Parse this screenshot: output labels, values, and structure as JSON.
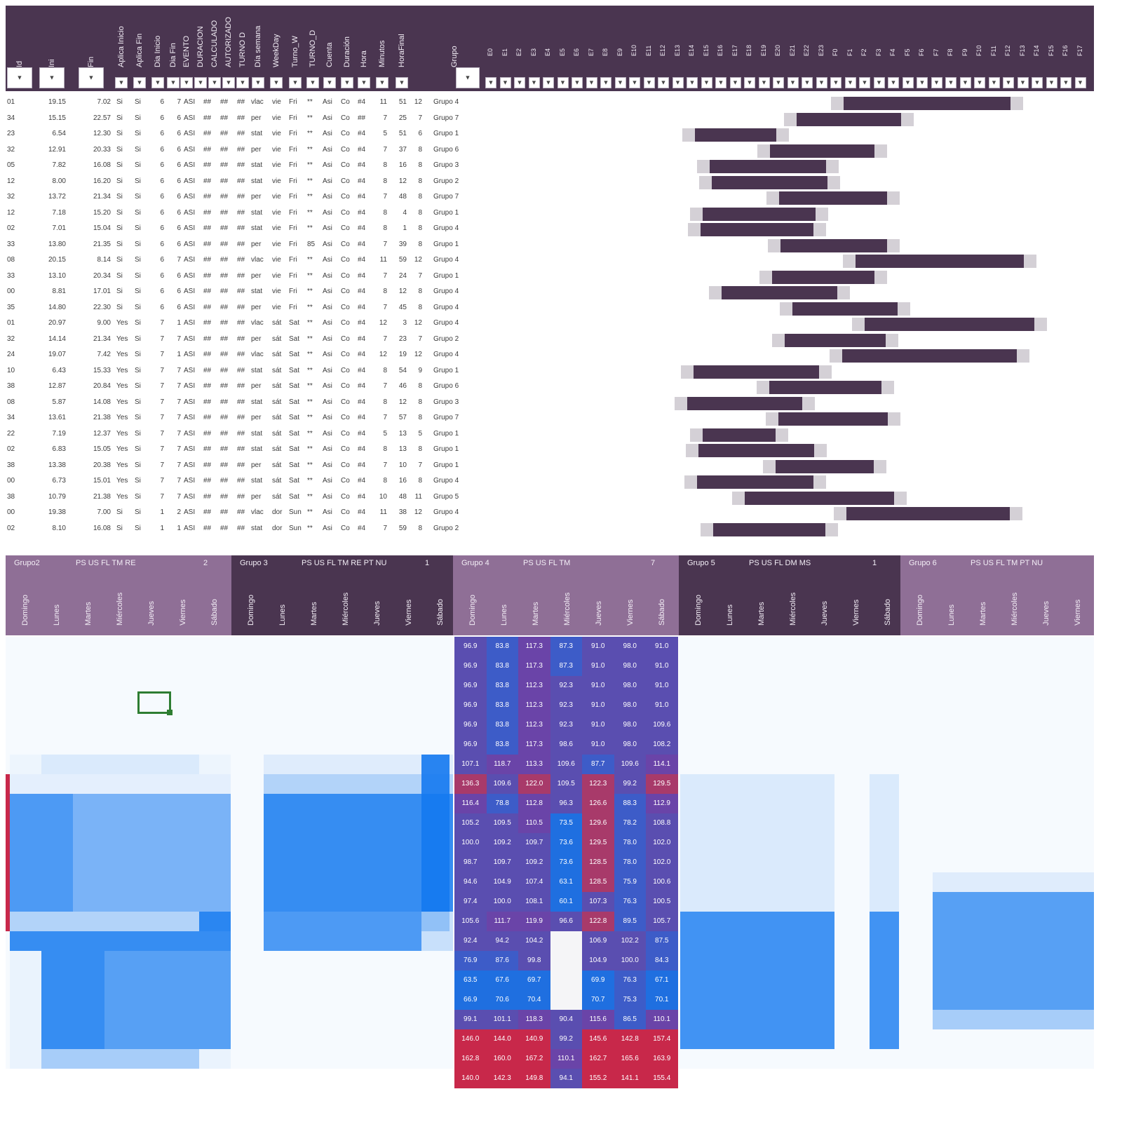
{
  "top_headers": {
    "left": [
      "Id",
      "Ini",
      "Fin",
      "Aplica Inicio",
      "Aplica Fin",
      "Dia Inicio",
      "Dia Fin",
      "EVENTO",
      "DURACION",
      "CALCULADO",
      "AUTORIZADO",
      "TURNO D",
      "Día semana",
      "WeekDay",
      "Turno_W",
      "TURNO_D",
      "Cuenta",
      "Duración",
      "Hora",
      "Minutos",
      "HoraFinal"
    ],
    "grupo": "Grupo",
    "hours": [
      "E0",
      "E1",
      "E2",
      "E3",
      "E4",
      "E5",
      "E6",
      "E7",
      "E8",
      "E9",
      "E10",
      "E11",
      "E12",
      "E13",
      "E14",
      "E15",
      "E16",
      "E17",
      "E18",
      "E19",
      "E20",
      "E21",
      "E22",
      "E23",
      "F0",
      "F1",
      "F2",
      "F3",
      "F4",
      "F5",
      "F6",
      "F7",
      "F8",
      "F9",
      "F10",
      "F11",
      "F12",
      "F13",
      "F14",
      "F15",
      "F16",
      "F17"
    ]
  },
  "filter_glyph": "▼",
  "rows": [
    {
      "id": "01",
      "ini": "19.15",
      "fin": "7.02",
      "a1": "Si",
      "a2": "Si",
      "d1": "6",
      "d2": "7",
      "ev": "ASI",
      "c1": "##",
      "c2": "##",
      "c3": "##",
      "td": "vlac",
      "ds": "vie",
      "wd": "Fri",
      "tw": "**",
      "tdd": "Asi",
      "cu": "Co",
      "du": "#4",
      "h": "11",
      "m": "51",
      "hf": "12",
      "g": "Grupo 4"
    },
    {
      "id": "34",
      "ini": "15.15",
      "fin": "22.57",
      "a1": "Si",
      "a2": "Si",
      "d1": "6",
      "d2": "6",
      "ev": "ASI",
      "c1": "##",
      "c2": "##",
      "c3": "##",
      "td": "per",
      "ds": "vie",
      "wd": "Fri",
      "tw": "**",
      "tdd": "Asi",
      "cu": "Co",
      "du": "##",
      "h": "7",
      "m": "25",
      "hf": "7",
      "g": "Grupo 7"
    },
    {
      "id": "23",
      "ini": "6.54",
      "fin": "12.30",
      "a1": "Si",
      "a2": "Si",
      "d1": "6",
      "d2": "6",
      "ev": "ASI",
      "c1": "##",
      "c2": "##",
      "c3": "##",
      "td": "stat",
      "ds": "vie",
      "wd": "Fri",
      "tw": "**",
      "tdd": "Asi",
      "cu": "Co",
      "du": "#4",
      "h": "5",
      "m": "51",
      "hf": "6",
      "g": "Grupo 1"
    },
    {
      "id": "32",
      "ini": "12.91",
      "fin": "20.33",
      "a1": "Si",
      "a2": "Si",
      "d1": "6",
      "d2": "6",
      "ev": "ASI",
      "c1": "##",
      "c2": "##",
      "c3": "##",
      "td": "per",
      "ds": "vie",
      "wd": "Fri",
      "tw": "**",
      "tdd": "Asi",
      "cu": "Co",
      "du": "#4",
      "h": "7",
      "m": "37",
      "hf": "8",
      "g": "Grupo 6"
    },
    {
      "id": "05",
      "ini": "7.82",
      "fin": "16.08",
      "a1": "Si",
      "a2": "Si",
      "d1": "6",
      "d2": "6",
      "ev": "ASI",
      "c1": "##",
      "c2": "##",
      "c3": "##",
      "td": "stat",
      "ds": "vie",
      "wd": "Fri",
      "tw": "**",
      "tdd": "Asi",
      "cu": "Co",
      "du": "#4",
      "h": "8",
      "m": "16",
      "hf": "8",
      "g": "Grupo 3"
    },
    {
      "id": "12",
      "ini": "8.00",
      "fin": "16.20",
      "a1": "Si",
      "a2": "Si",
      "d1": "6",
      "d2": "6",
      "ev": "ASI",
      "c1": "##",
      "c2": "##",
      "c3": "##",
      "td": "stat",
      "ds": "vie",
      "wd": "Fri",
      "tw": "**",
      "tdd": "Asi",
      "cu": "Co",
      "du": "#4",
      "h": "8",
      "m": "12",
      "hf": "8",
      "g": "Grupo 2"
    },
    {
      "id": "32",
      "ini": "13.72",
      "fin": "21.34",
      "a1": "Si",
      "a2": "Si",
      "d1": "6",
      "d2": "6",
      "ev": "ASI",
      "c1": "##",
      "c2": "##",
      "c3": "##",
      "td": "per",
      "ds": "vie",
      "wd": "Fri",
      "tw": "**",
      "tdd": "Asi",
      "cu": "Co",
      "du": "#4",
      "h": "7",
      "m": "48",
      "hf": "8",
      "g": "Grupo 7"
    },
    {
      "id": "12",
      "ini": "7.18",
      "fin": "15.20",
      "a1": "Si",
      "a2": "Si",
      "d1": "6",
      "d2": "6",
      "ev": "ASI",
      "c1": "##",
      "c2": "##",
      "c3": "##",
      "td": "stat",
      "ds": "vie",
      "wd": "Fri",
      "tw": "**",
      "tdd": "Asi",
      "cu": "Co",
      "du": "#4",
      "h": "8",
      "m": "4",
      "hf": "8",
      "g": "Grupo 1"
    },
    {
      "id": "02",
      "ini": "7.01",
      "fin": "15.04",
      "a1": "Si",
      "a2": "Si",
      "d1": "6",
      "d2": "6",
      "ev": "ASI",
      "c1": "##",
      "c2": "##",
      "c3": "##",
      "td": "stat",
      "ds": "vie",
      "wd": "Fri",
      "tw": "**",
      "tdd": "Asi",
      "cu": "Co",
      "du": "#4",
      "h": "8",
      "m": "1",
      "hf": "8",
      "g": "Grupo 4"
    },
    {
      "id": "33",
      "ini": "13.80",
      "fin": "21.35",
      "a1": "Si",
      "a2": "Si",
      "d1": "6",
      "d2": "6",
      "ev": "ASI",
      "c1": "##",
      "c2": "##",
      "c3": "##",
      "td": "per",
      "ds": "vie",
      "wd": "Fri",
      "tw": "85",
      "tdd": "Asi",
      "cu": "Co",
      "du": "#4",
      "h": "7",
      "m": "39",
      "hf": "8",
      "g": "Grupo 1"
    },
    {
      "id": "08",
      "ini": "20.15",
      "fin": "8.14",
      "a1": "Si",
      "a2": "Si",
      "d1": "6",
      "d2": "7",
      "ev": "ASI",
      "c1": "##",
      "c2": "##",
      "c3": "##",
      "td": "vlac",
      "ds": "vie",
      "wd": "Fri",
      "tw": "**",
      "tdd": "Asi",
      "cu": "Co",
      "du": "#4",
      "h": "11",
      "m": "59",
      "hf": "12",
      "g": "Grupo 4"
    },
    {
      "id": "33",
      "ini": "13.10",
      "fin": "20.34",
      "a1": "Si",
      "a2": "Si",
      "d1": "6",
      "d2": "6",
      "ev": "ASI",
      "c1": "##",
      "c2": "##",
      "c3": "##",
      "td": "per",
      "ds": "vie",
      "wd": "Fri",
      "tw": "**",
      "tdd": "Asi",
      "cu": "Co",
      "du": "#4",
      "h": "7",
      "m": "24",
      "hf": "7",
      "g": "Grupo 1"
    },
    {
      "id": "00",
      "ini": "8.81",
      "fin": "17.01",
      "a1": "Si",
      "a2": "Si",
      "d1": "6",
      "d2": "6",
      "ev": "ASI",
      "c1": "##",
      "c2": "##",
      "c3": "##",
      "td": "stat",
      "ds": "vie",
      "wd": "Fri",
      "tw": "**",
      "tdd": "Asi",
      "cu": "Co",
      "du": "#4",
      "h": "8",
      "m": "12",
      "hf": "8",
      "g": "Grupo 4"
    },
    {
      "id": "35",
      "ini": "14.80",
      "fin": "22.30",
      "a1": "Si",
      "a2": "Si",
      "d1": "6",
      "d2": "6",
      "ev": "ASI",
      "c1": "##",
      "c2": "##",
      "c3": "##",
      "td": "per",
      "ds": "vie",
      "wd": "Fri",
      "tw": "**",
      "tdd": "Asi",
      "cu": "Co",
      "du": "#4",
      "h": "7",
      "m": "45",
      "hf": "8",
      "g": "Grupo 4"
    },
    {
      "id": "01",
      "ini": "20.97",
      "fin": "9.00",
      "a1": "Yes",
      "a2": "Si",
      "d1": "7",
      "d2": "1",
      "ev": "ASI",
      "c1": "##",
      "c2": "##",
      "c3": "##",
      "td": "vlac",
      "ds": "sát",
      "wd": "Sat",
      "tw": "**",
      "tdd": "Asi",
      "cu": "Co",
      "du": "#4",
      "h": "12",
      "m": "3",
      "hf": "12",
      "g": "Grupo 4"
    },
    {
      "id": "32",
      "ini": "14.14",
      "fin": "21.34",
      "a1": "Yes",
      "a2": "Si",
      "d1": "7",
      "d2": "7",
      "ev": "ASI",
      "c1": "##",
      "c2": "##",
      "c3": "##",
      "td": "per",
      "ds": "sát",
      "wd": "Sat",
      "tw": "**",
      "tdd": "Asi",
      "cu": "Co",
      "du": "#4",
      "h": "7",
      "m": "23",
      "hf": "7",
      "g": "Grupo 2"
    },
    {
      "id": "24",
      "ini": "19.07",
      "fin": "7.42",
      "a1": "Yes",
      "a2": "Si",
      "d1": "7",
      "d2": "1",
      "ev": "ASI",
      "c1": "##",
      "c2": "##",
      "c3": "##",
      "td": "vlac",
      "ds": "sát",
      "wd": "Sat",
      "tw": "**",
      "tdd": "Asi",
      "cu": "Co",
      "du": "#4",
      "h": "12",
      "m": "19",
      "hf": "12",
      "g": "Grupo 4"
    },
    {
      "id": "10",
      "ini": "6.43",
      "fin": "15.33",
      "a1": "Yes",
      "a2": "Si",
      "d1": "7",
      "d2": "7",
      "ev": "ASI",
      "c1": "##",
      "c2": "##",
      "c3": "##",
      "td": "stat",
      "ds": "sát",
      "wd": "Sat",
      "tw": "**",
      "tdd": "Asi",
      "cu": "Co",
      "du": "#4",
      "h": "8",
      "m": "54",
      "hf": "9",
      "g": "Grupo 1"
    },
    {
      "id": "38",
      "ini": "12.87",
      "fin": "20.84",
      "a1": "Yes",
      "a2": "Si",
      "d1": "7",
      "d2": "7",
      "ev": "ASI",
      "c1": "##",
      "c2": "##",
      "c3": "##",
      "td": "per",
      "ds": "sát",
      "wd": "Sat",
      "tw": "**",
      "tdd": "Asi",
      "cu": "Co",
      "du": "#4",
      "h": "7",
      "m": "46",
      "hf": "8",
      "g": "Grupo 6"
    },
    {
      "id": "08",
      "ini": "5.87",
      "fin": "14.08",
      "a1": "Yes",
      "a2": "Si",
      "d1": "7",
      "d2": "7",
      "ev": "ASI",
      "c1": "##",
      "c2": "##",
      "c3": "##",
      "td": "stat",
      "ds": "sát",
      "wd": "Sat",
      "tw": "**",
      "tdd": "Asi",
      "cu": "Co",
      "du": "#4",
      "h": "8",
      "m": "12",
      "hf": "8",
      "g": "Grupo 3"
    },
    {
      "id": "34",
      "ini": "13.61",
      "fin": "21.38",
      "a1": "Yes",
      "a2": "Si",
      "d1": "7",
      "d2": "7",
      "ev": "ASI",
      "c1": "##",
      "c2": "##",
      "c3": "##",
      "td": "per",
      "ds": "sát",
      "wd": "Sat",
      "tw": "**",
      "tdd": "Asi",
      "cu": "Co",
      "du": "#4",
      "h": "7",
      "m": "57",
      "hf": "8",
      "g": "Grupo 7"
    },
    {
      "id": "22",
      "ini": "7.19",
      "fin": "12.37",
      "a1": "Yes",
      "a2": "Si",
      "d1": "7",
      "d2": "7",
      "ev": "ASI",
      "c1": "##",
      "c2": "##",
      "c3": "##",
      "td": "stat",
      "ds": "sát",
      "wd": "Sat",
      "tw": "**",
      "tdd": "Asi",
      "cu": "Co",
      "du": "#4",
      "h": "5",
      "m": "13",
      "hf": "5",
      "g": "Grupo 1"
    },
    {
      "id": "02",
      "ini": "6.83",
      "fin": "15.05",
      "a1": "Yes",
      "a2": "Si",
      "d1": "7",
      "d2": "7",
      "ev": "ASI",
      "c1": "##",
      "c2": "##",
      "c3": "##",
      "td": "stat",
      "ds": "sát",
      "wd": "Sat",
      "tw": "**",
      "tdd": "Asi",
      "cu": "Co",
      "du": "#4",
      "h": "8",
      "m": "13",
      "hf": "8",
      "g": "Grupo 1"
    },
    {
      "id": "38",
      "ini": "13.38",
      "fin": "20.38",
      "a1": "Yes",
      "a2": "Si",
      "d1": "7",
      "d2": "7",
      "ev": "ASI",
      "c1": "##",
      "c2": "##",
      "c3": "##",
      "td": "per",
      "ds": "sát",
      "wd": "Sat",
      "tw": "**",
      "tdd": "Asi",
      "cu": "Co",
      "du": "#4",
      "h": "7",
      "m": "10",
      "hf": "7",
      "g": "Grupo 1"
    },
    {
      "id": "00",
      "ini": "6.73",
      "fin": "15.01",
      "a1": "Yes",
      "a2": "Si",
      "d1": "7",
      "d2": "7",
      "ev": "ASI",
      "c1": "##",
      "c2": "##",
      "c3": "##",
      "td": "stat",
      "ds": "sát",
      "wd": "Sat",
      "tw": "**",
      "tdd": "Asi",
      "cu": "Co",
      "du": "#4",
      "h": "8",
      "m": "16",
      "hf": "8",
      "g": "Grupo 4"
    },
    {
      "id": "38",
      "ini": "10.79",
      "fin": "21.38",
      "a1": "Yes",
      "a2": "Si",
      "d1": "7",
      "d2": "7",
      "ev": "ASI",
      "c1": "##",
      "c2": "##",
      "c3": "##",
      "td": "per",
      "ds": "sát",
      "wd": "Sat",
      "tw": "**",
      "tdd": "Asi",
      "cu": "Co",
      "du": "#4",
      "h": "10",
      "m": "48",
      "hf": "11",
      "g": "Grupo 5"
    },
    {
      "id": "00",
      "ini": "19.38",
      "fin": "7.00",
      "a1": "Si",
      "a2": "Si",
      "d1": "1",
      "d2": "2",
      "ev": "ASI",
      "c1": "##",
      "c2": "##",
      "c3": "##",
      "td": "vlac",
      "ds": "dor",
      "wd": "Sun",
      "tw": "**",
      "tdd": "Asi",
      "cu": "Co",
      "du": "#4",
      "h": "11",
      "m": "38",
      "hf": "12",
      "g": "Grupo 4"
    },
    {
      "id": "02",
      "ini": "8.10",
      "fin": "16.08",
      "a1": "Si",
      "a2": "Si",
      "d1": "1",
      "d2": "1",
      "ev": "ASI",
      "c1": "##",
      "c2": "##",
      "c3": "##",
      "td": "stat",
      "ds": "dor",
      "wd": "Sun",
      "tw": "**",
      "tdd": "Asi",
      "cu": "Co",
      "du": "#4",
      "h": "7",
      "m": "59",
      "hf": "8",
      "g": "Grupo 2"
    }
  ],
  "pivot_groups": [
    {
      "name": "Grupo2",
      "roles": "PS US FL TM RE",
      "count": "2",
      "days": [
        "Domingo",
        "Lunes",
        "Martes",
        "Miércoles",
        "Jueves",
        "Viernes",
        "Sábado"
      ]
    },
    {
      "name": "Grupo 3",
      "roles": "PS US FL TM RE PT NU",
      "count": "1",
      "days": [
        "Domingo",
        "Lunes",
        "Martes",
        "Miércoles",
        "Jueves",
        "Viernes",
        "Sábado"
      ]
    },
    {
      "name": "Grupo 4",
      "roles": "PS US FL TM",
      "count": "7",
      "days": [
        "Domingo",
        "Lunes",
        "Martes",
        "Miércoles",
        "Jueves",
        "Viernes",
        "Sábado"
      ]
    },
    {
      "name": "Grupo 5",
      "roles": "PS US FL DM MS",
      "count": "1",
      "days": [
        "Domingo",
        "Lunes",
        "Martes",
        "Miércoles",
        "Jueves",
        "Viernes",
        "Sábado"
      ]
    },
    {
      "name": "Grupo 6",
      "roles": "PS US FL TM PT NU",
      "count": "",
      "days": [
        "Domingo",
        "Lunes",
        "Martes",
        "Miércoles",
        "Jueves",
        "Viernes"
      ]
    }
  ],
  "grupo4_values": [
    [
      "96.9",
      "83.8",
      "117.3",
      "87.3",
      "91.0",
      "98.0",
      "91.0"
    ],
    [
      "96.9",
      "83.8",
      "117.3",
      "87.3",
      "91.0",
      "98.0",
      "91.0"
    ],
    [
      "96.9",
      "83.8",
      "112.3",
      "92.3",
      "91.0",
      "98.0",
      "91.0"
    ],
    [
      "96.9",
      "83.8",
      "112.3",
      "92.3",
      "91.0",
      "98.0",
      "91.0"
    ],
    [
      "96.9",
      "83.8",
      "112.3",
      "92.3",
      "91.0",
      "98.0",
      "109.6"
    ],
    [
      "96.9",
      "83.8",
      "117.3",
      "98.6",
      "91.0",
      "98.0",
      "108.2"
    ],
    [
      "107.1",
      "118.7",
      "113.3",
      "109.6",
      "87.7",
      "109.6",
      "114.1"
    ],
    [
      "136.3",
      "109.6",
      "122.0",
      "109.5",
      "122.3",
      "99.2",
      "129.5"
    ],
    [
      "116.4",
      "78.8",
      "112.8",
      "96.3",
      "126.6",
      "88.3",
      "112.9"
    ],
    [
      "105.2",
      "109.5",
      "110.5",
      "73.5",
      "129.6",
      "78.2",
      "108.8"
    ],
    [
      "100.0",
      "109.2",
      "109.7",
      "73.6",
      "129.5",
      "78.0",
      "102.0"
    ],
    [
      "98.7",
      "109.7",
      "109.2",
      "73.6",
      "128.5",
      "78.0",
      "102.0"
    ],
    [
      "94.6",
      "104.9",
      "107.4",
      "63.1",
      "128.5",
      "75.9",
      "100.6"
    ],
    [
      "97.4",
      "100.0",
      "108.1",
      "60.1",
      "107.3",
      "76.3",
      "100.5"
    ],
    [
      "105.6",
      "111.7",
      "119.9",
      "96.6",
      "122.8",
      "89.5",
      "105.7"
    ],
    [
      "92.4",
      "94.2",
      "104.2",
      "",
      "106.9",
      "102.2",
      "87.5"
    ],
    [
      "76.9",
      "87.6",
      "99.8",
      "",
      "104.9",
      "100.0",
      "84.3"
    ],
    [
      "63.5",
      "67.6",
      "69.7",
      "",
      "69.9",
      "76.3",
      "67.1"
    ],
    [
      "66.9",
      "70.6",
      "70.4",
      "",
      "70.7",
      "75.3",
      "70.1"
    ],
    [
      "99.1",
      "101.1",
      "118.3",
      "90.4",
      "115.6",
      "86.5",
      "110.1"
    ],
    [
      "146.0",
      "144.0",
      "140.9",
      "99.2",
      "145.6",
      "142.8",
      "157.4"
    ],
    [
      "162.8",
      "160.0",
      "167.2",
      "110.1",
      "162.7",
      "165.6",
      "163.9"
    ],
    [
      "140.0",
      "142.3",
      "149.8",
      "94.1",
      "155.2",
      "141.1",
      "155.4"
    ]
  ],
  "colors": {
    "header_dark": "#4a3550",
    "header_light": "#8f6f96",
    "accent_red": "#c8284a",
    "blue": "#1479f0"
  }
}
